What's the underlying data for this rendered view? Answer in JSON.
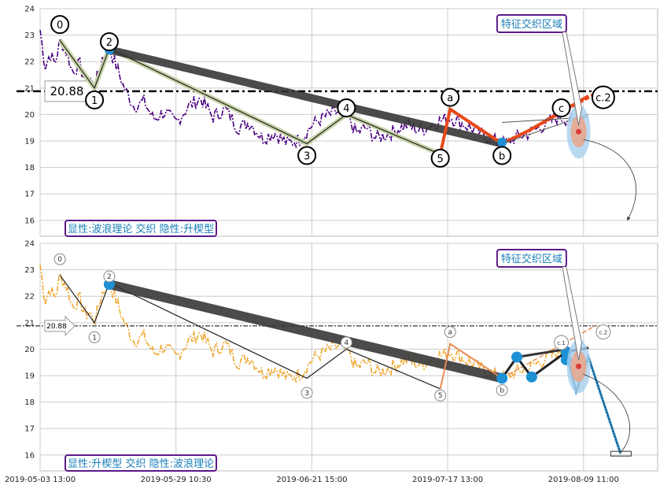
{
  "chart_data": [
    {
      "type": "line",
      "panel": "top",
      "ylim": [
        15.4,
        24
      ],
      "yticks": [
        16,
        17,
        18,
        19,
        20,
        21,
        22,
        23,
        24
      ],
      "ytick_labels": [
        "16",
        "17",
        "18",
        "19",
        "20",
        "21",
        "22",
        "23",
        "24"
      ],
      "xtick_labels": [],
      "level": {
        "value": 20.88,
        "label": "20.88"
      },
      "wave_labels": [
        {
          "text": "0",
          "x": 8,
          "y": 23.4
        },
        {
          "text": "1",
          "x": 22,
          "y": 20.55
        },
        {
          "text": "2",
          "x": 28,
          "y": 22.75
        },
        {
          "text": "3",
          "x": 108,
          "y": 18.45
        },
        {
          "text": "4",
          "x": 124,
          "y": 20.25
        },
        {
          "text": "5",
          "x": 162,
          "y": 18.35
        },
        {
          "text": "a",
          "x": 166,
          "y": 20.65
        },
        {
          "text": "b",
          "x": 187,
          "y": 18.45
        },
        {
          "text": "c",
          "x": 211,
          "y": 20.25
        },
        {
          "text": "c.2",
          "x": 228,
          "y": 20.65
        }
      ],
      "annotation_box": "特征交织区域",
      "legend_text": "显性:波浪理论 交织 隐性:升楔型"
    },
    {
      "type": "line",
      "panel": "bottom",
      "ylim": [
        15.4,
        24
      ],
      "yticks": [
        16,
        17,
        18,
        19,
        20,
        21,
        22,
        23,
        24
      ],
      "ytick_labels": [
        "16",
        "17",
        "18",
        "19",
        "20",
        "21",
        "22",
        "23",
        "24"
      ],
      "xtick_labels": [
        "2019-05-03 13:00",
        "2019-05-29 10:30",
        "2019-06-21 15:00",
        "2019-07-17 13:00",
        "2019-08-09 11:00"
      ],
      "level": {
        "value": 20.88,
        "label": "20.88"
      },
      "wave_labels": [
        {
          "text": "0",
          "x": 8,
          "y": 23.4
        },
        {
          "text": "1",
          "x": 22,
          "y": 20.45
        },
        {
          "text": "2",
          "x": 28,
          "y": 22.75
        },
        {
          "text": "3",
          "x": 108,
          "y": 18.35
        },
        {
          "text": "4",
          "x": 124,
          "y": 20.25
        },
        {
          "text": "5",
          "x": 162,
          "y": 18.25
        },
        {
          "text": "a",
          "x": 166,
          "y": 20.65
        },
        {
          "text": "b",
          "x": 187,
          "y": 18.45
        },
        {
          "text": "c.1",
          "x": 211,
          "y": 20.25
        },
        {
          "text": "c.2",
          "x": 228,
          "y": 20.65
        }
      ],
      "annotation_box": "特征交织区域",
      "legend_text": "显性:升楔型 交织 隐性:波浪理论"
    }
  ]
}
